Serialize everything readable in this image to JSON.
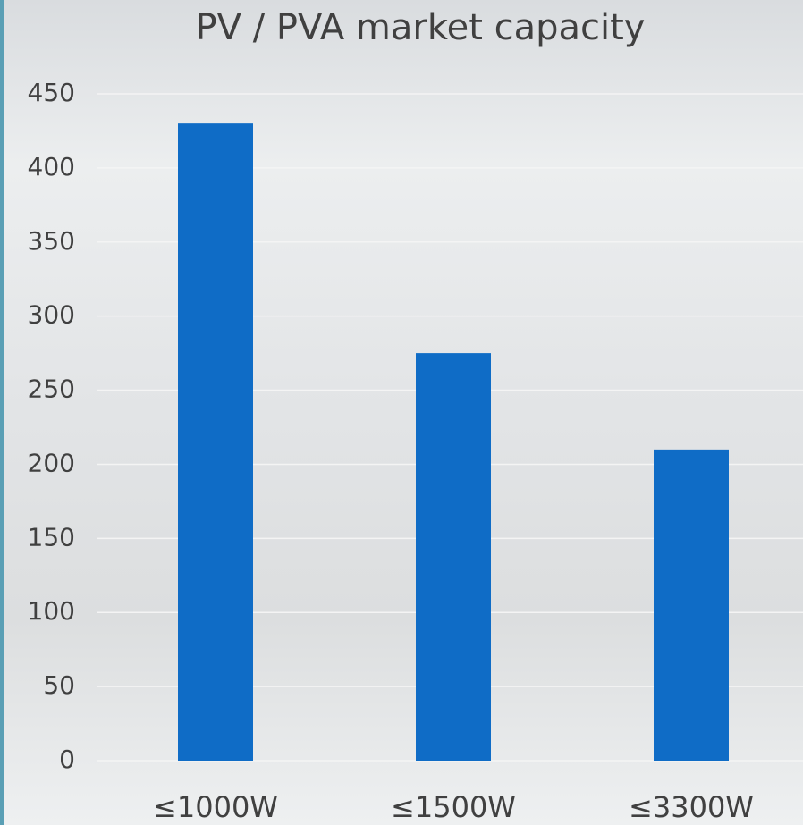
{
  "chart_data": {
    "type": "bar",
    "title": "PV / PVA market capacity",
    "categories": [
      "≤1000W",
      "≤1500W",
      "≤3300W"
    ],
    "values": [
      430,
      275,
      210
    ],
    "color": "#0f6cc6",
    "ylim": [
      0,
      450
    ],
    "yticks": [
      0,
      50,
      100,
      150,
      200,
      250,
      300,
      350,
      400,
      450
    ],
    "grid": true
  }
}
